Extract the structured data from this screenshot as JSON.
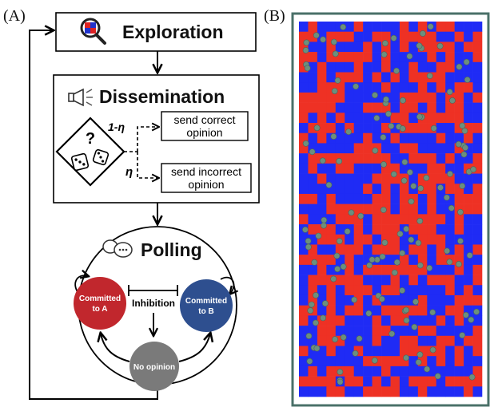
{
  "panel_a": {
    "label": "(A)",
    "exploration": {
      "title": "Exploration",
      "icon": "magnifier-grid-icon"
    },
    "dissemination": {
      "title": "Dissemination",
      "icon": "megaphone-icon",
      "decision_icon": "dice-diamond-icon",
      "decision_glyph": "?",
      "prob_correct": "1-η",
      "prob_incorrect": "η",
      "correct_line1": "send correct",
      "correct_line2": "opinion",
      "incorrect_line1": "send incorrect",
      "incorrect_line2": "opinion"
    },
    "polling": {
      "title": "Polling",
      "icon": "speech-bubbles-icon",
      "state_a_line1": "Committed",
      "state_a_line2": "to A",
      "state_b_line1": "Committed",
      "state_b_line2": "to B",
      "inhibition": "Inhibition",
      "no_opinion": "No opinion"
    }
  },
  "panel_b": {
    "label": "(B)",
    "grid_cols": 20,
    "grid_rows": 37,
    "agent_count": 150,
    "colors": {
      "red": "#ee3124",
      "blue": "#1f2bf5",
      "agent": "#6b8f7e",
      "frame": "#4a7068"
    }
  },
  "colors": {
    "committed_a": "#c1272d",
    "committed_b": "#2e4f8f",
    "no_opinion": "#7a7a7a"
  }
}
